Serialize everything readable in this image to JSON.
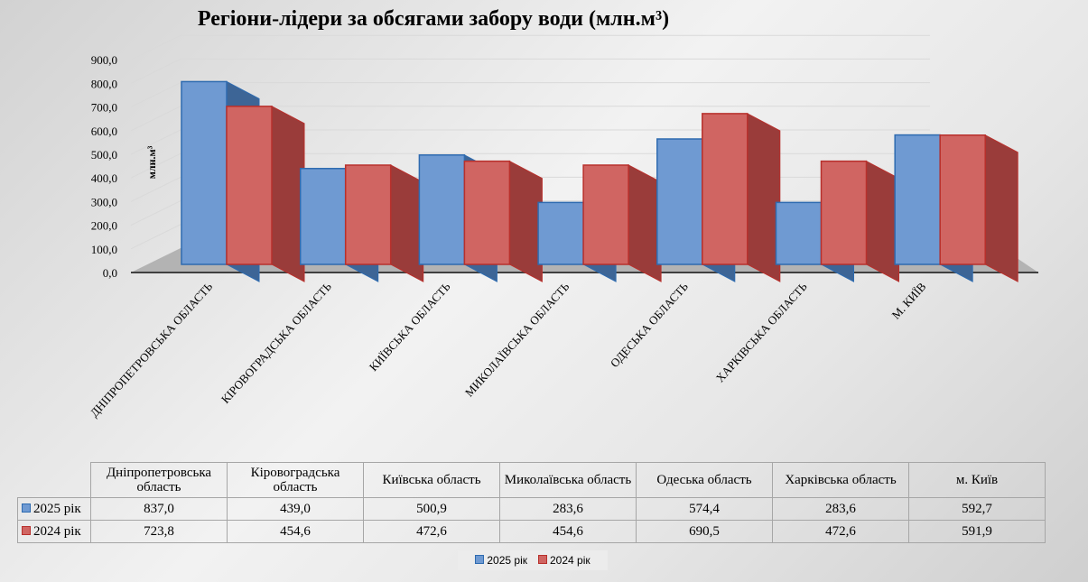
{
  "chart_data": {
    "type": "bar",
    "title": "Регіони-лідери за обсягами забору води (млн.м³)",
    "ylabel": "млн.м³",
    "xlabel": "",
    "ylim": [
      0,
      900
    ],
    "yticks": [
      "0,0",
      "100,0",
      "200,0",
      "300,0",
      "400,0",
      "500,0",
      "600,0",
      "700,0",
      "800,0",
      "900,0"
    ],
    "grid": true,
    "legend": "bottom",
    "categories": [
      "Дніпропетровська область",
      "Кіровоградська область",
      "Київська область",
      "Миколаївська область",
      "Одеська область",
      "Харківська область",
      "м. Київ"
    ],
    "axis_labels": [
      "ДНІПРОПЕТРОВСЬКА ОБЛАСТЬ",
      "КІРОВОГРАДСЬКА ОБЛАСТЬ",
      "КИЇВСЬКА ОБЛАСТЬ",
      "МИКОЛАЇВСЬКА ОБЛАСТЬ",
      "ОДЕСЬКА ОБЛАСТЬ",
      "ХАРКІВСЬКА ОБЛАСТЬ",
      "М. КИЇВ"
    ],
    "series": [
      {
        "name": "2025 рік",
        "color": "#4f81bd",
        "values": [
          837.0,
          439.0,
          500.9,
          283.6,
          574.4,
          283.6,
          592.7
        ],
        "labels": [
          "837,0",
          "439,0",
          "500,9",
          "283,6",
          "574,4",
          "283,6",
          "592,7"
        ]
      },
      {
        "name": "2024 рік",
        "color": "#c0504d",
        "values": [
          723.8,
          454.6,
          472.6,
          454.6,
          690.5,
          472.6,
          591.9
        ],
        "labels": [
          "723,8",
          "454,6",
          "472,6",
          "454,6",
          "690,5",
          "472,6",
          "591,9"
        ]
      }
    ]
  }
}
